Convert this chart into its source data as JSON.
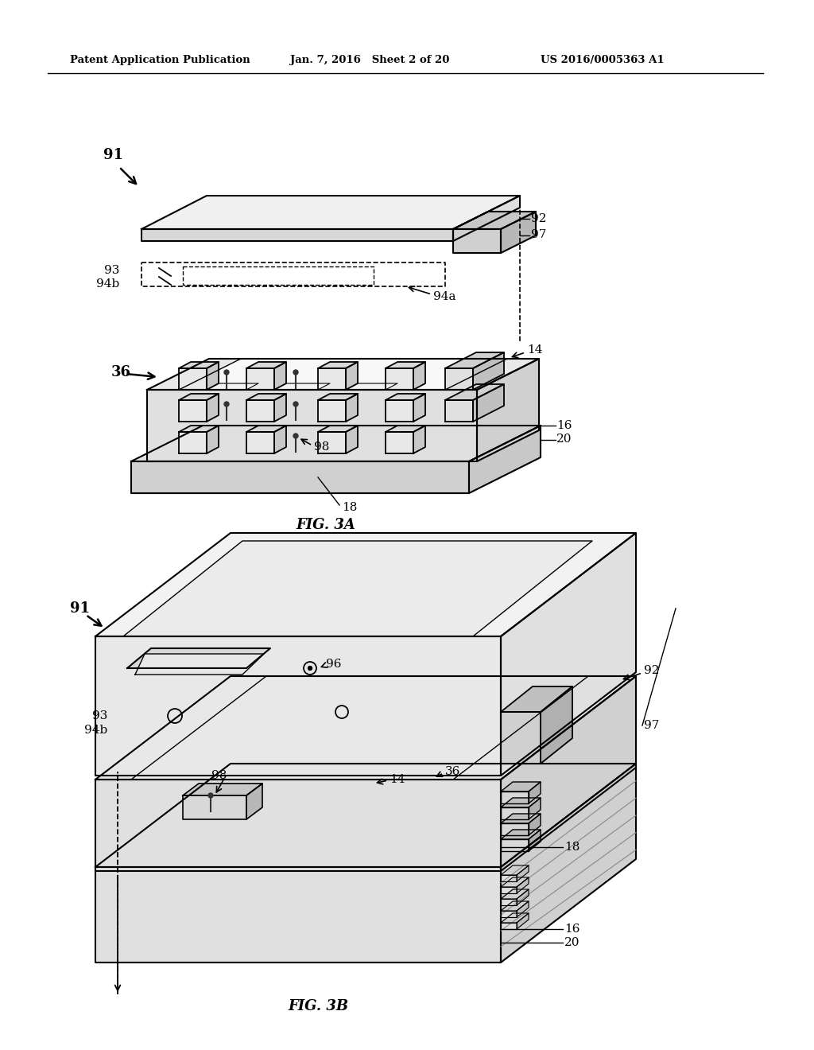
{
  "bg_color": "#ffffff",
  "line_color": "#000000",
  "gray_light": "#f0f0f0",
  "gray_mid": "#d8d8d8",
  "gray_dark": "#b8b8b8",
  "gray_side": "#e0e0e0",
  "header_left": "Patent Application Publication",
  "header_mid": "Jan. 7, 2016   Sheet 2 of 20",
  "header_right": "US 2016/0005363 A1",
  "fig3a_label": "FIG. 3A",
  "fig3b_label": "FIG. 3B"
}
